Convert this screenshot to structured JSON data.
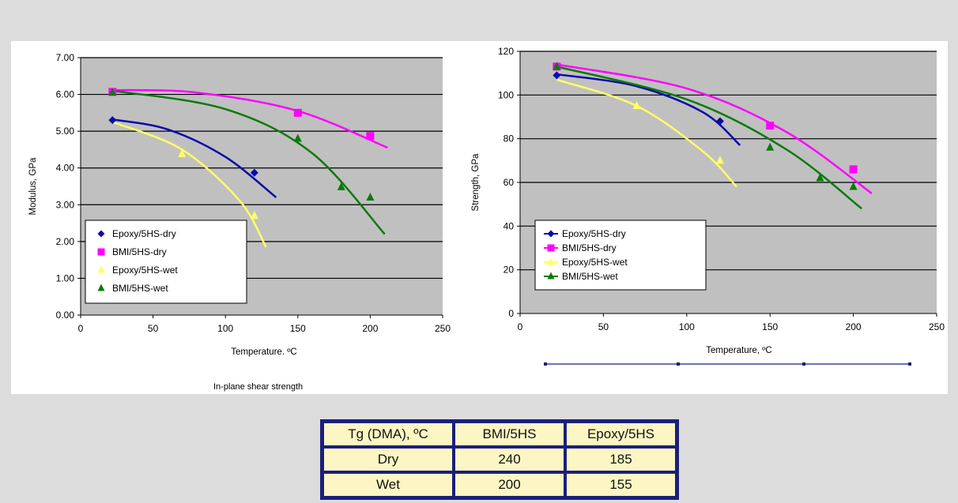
{
  "chart_data": [
    {
      "type": "scatter",
      "xlabel": "Temperature. ºC",
      "ylabel": "Modulus, GPa",
      "xlim": [
        0,
        250
      ],
      "ylim": [
        0,
        7
      ],
      "xticks": [
        "0",
        "50",
        "100",
        "150",
        "200",
        "250"
      ],
      "yticks": [
        "0.00",
        "1.00",
        "2.00",
        "3.00",
        "4.00",
        "5.00",
        "6.00",
        "7.00"
      ],
      "grid": true,
      "legend_position": "bottom-left",
      "series": [
        {
          "name": "Epoxy/5HS-dry",
          "marker": "diamond",
          "color": "#0a0aa8",
          "x": [
            22,
            120
          ],
          "y": [
            5.3,
            3.87
          ],
          "trend": {
            "x": [
              22,
              60,
              100,
              135
            ],
            "y": [
              5.32,
              5.05,
              4.3,
              3.2
            ]
          }
        },
        {
          "name": "BMI/5HS-dry",
          "marker": "square",
          "color": "#ff00ff",
          "x": [
            22,
            150,
            200
          ],
          "y": [
            6.07,
            5.5,
            4.87
          ],
          "trend": {
            "x": [
              22,
              80,
              150,
              212
            ],
            "y": [
              6.12,
              6.05,
              5.55,
              4.55
            ]
          }
        },
        {
          "name": "Epoxy/5HS-wet",
          "marker": "triangle",
          "color": "#ffff66",
          "x": [
            70,
            120
          ],
          "y": [
            4.38,
            2.7
          ],
          "trend": {
            "x": [
              22,
              70,
              110,
              128
            ],
            "y": [
              5.25,
              4.5,
              3.1,
              1.85
            ]
          }
        },
        {
          "name": "BMI/5HS-wet",
          "marker": "triangle",
          "color": "#0a7a0a",
          "x": [
            22,
            150,
            180,
            200
          ],
          "y": [
            6.05,
            4.8,
            3.48,
            3.2
          ],
          "trend": {
            "x": [
              22,
              100,
              160,
              210
            ],
            "y": [
              6.1,
              5.6,
              4.4,
              2.2
            ]
          }
        }
      ]
    },
    {
      "type": "scatter",
      "xlabel": "Temperature, ºC",
      "ylabel": "Strength, GPa",
      "xlim": [
        0,
        250
      ],
      "ylim": [
        0,
        120
      ],
      "xticks": [
        "0",
        "50",
        "100",
        "150",
        "200",
        "250"
      ],
      "yticks": [
        "0",
        "20",
        "40",
        "60",
        "80",
        "100",
        "120"
      ],
      "grid": true,
      "legend_position": "bottom-left",
      "series": [
        {
          "name": "Epoxy/5HS-dry",
          "marker": "diamond",
          "color": "#0a0aa8",
          "x": [
            22,
            120
          ],
          "y": [
            109,
            88
          ],
          "trend": {
            "x": [
              22,
              70,
              110,
              132
            ],
            "y": [
              109.5,
              104,
              92,
              77
            ]
          }
        },
        {
          "name": "BMI/5HS-dry",
          "marker": "square",
          "color": "#ff00ff",
          "x": [
            22,
            150,
            200
          ],
          "y": [
            113,
            86,
            66
          ],
          "trend": {
            "x": [
              22,
              100,
              160,
              211
            ],
            "y": [
              114,
              103,
              83,
              55
            ]
          }
        },
        {
          "name": "Epoxy/5HS-wet",
          "marker": "triangle",
          "color": "#ffff66",
          "x": [
            70,
            120
          ],
          "y": [
            95,
            70
          ],
          "trend": {
            "x": [
              22,
              70,
              110,
              130
            ],
            "y": [
              107,
              95,
              74,
              58
            ]
          }
        },
        {
          "name": "BMI/5HS-wet",
          "marker": "triangle",
          "color": "#0a7a0a",
          "x": [
            22,
            150,
            180,
            200
          ],
          "y": [
            113,
            76,
            62,
            58
          ],
          "trend": {
            "x": [
              22,
              100,
              160,
              205
            ],
            "y": [
              113,
              98,
              75,
              48
            ]
          }
        }
      ]
    }
  ],
  "subtitle": "In-plane shear strength",
  "tg_table": {
    "header": [
      "Tg (DMA), ºC",
      "BMI/5HS",
      "Epoxy/5HS"
    ],
    "rows": [
      [
        "Dry",
        "240",
        "185"
      ],
      [
        "Wet",
        "200",
        "155"
      ]
    ]
  }
}
